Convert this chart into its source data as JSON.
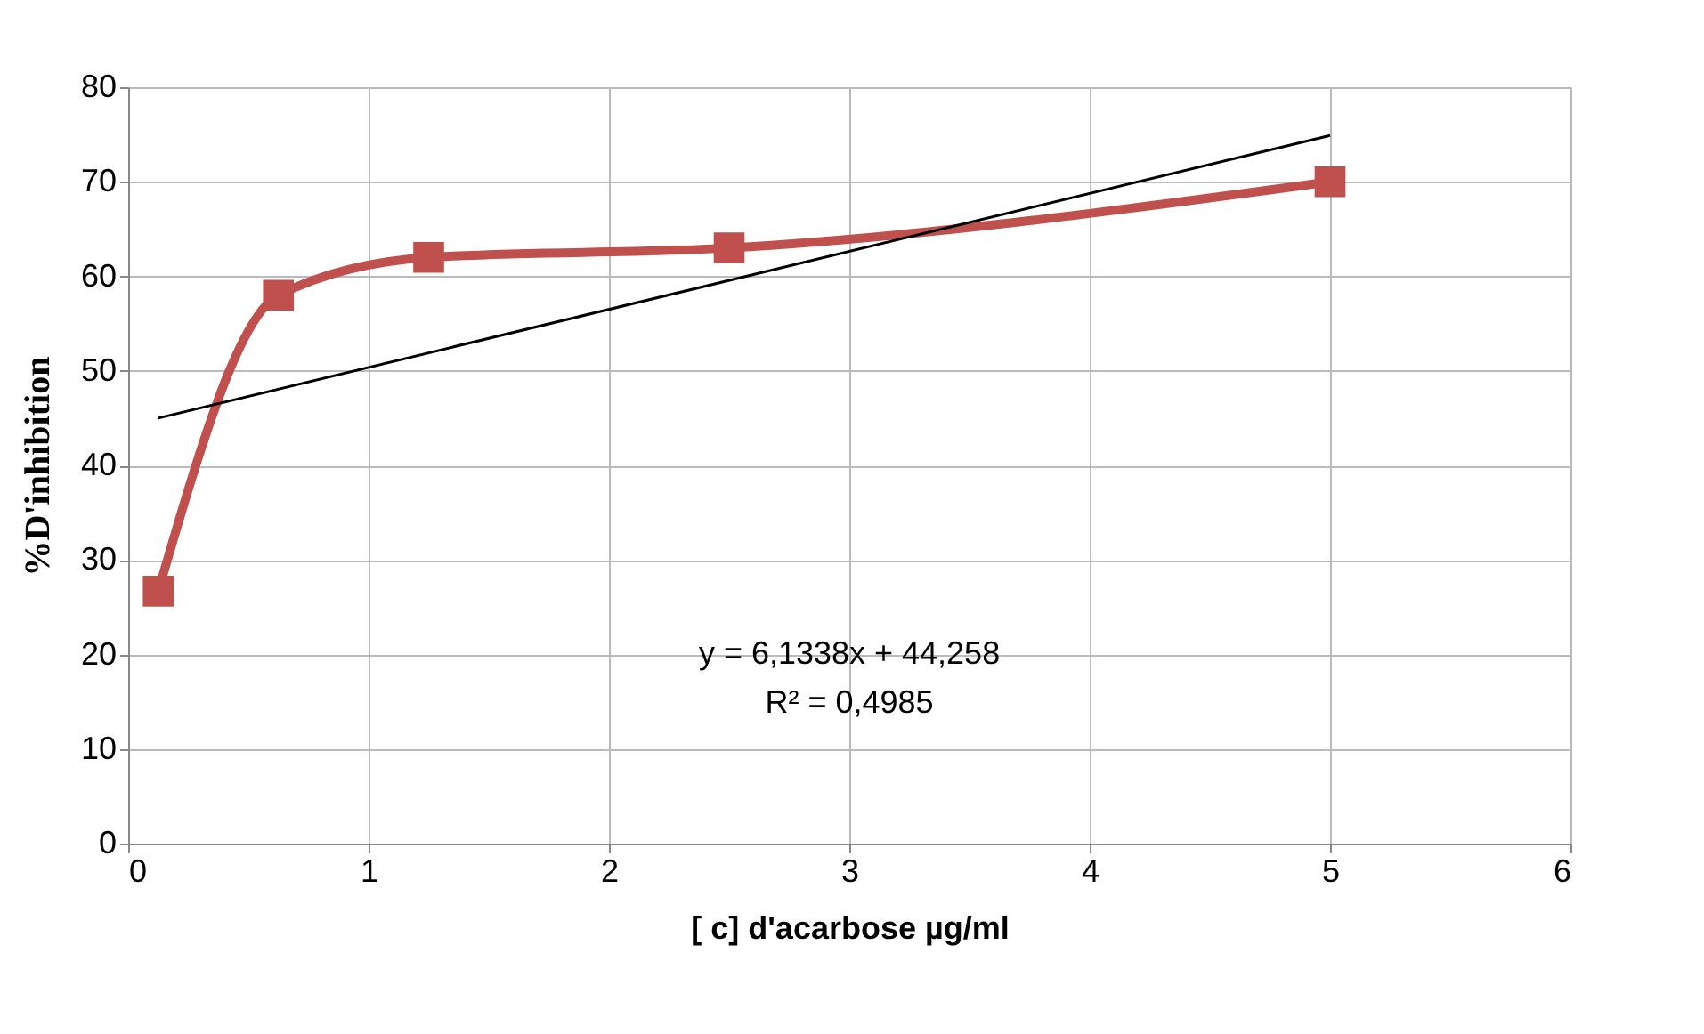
{
  "chart_data": {
    "type": "line",
    "xlabel": "[ c] d'acarbose µg/ml",
    "ylabel": "%D'inhibition",
    "xlim": [
      0,
      6
    ],
    "xticks": [
      0,
      1,
      2,
      3,
      4,
      5,
      6
    ],
    "ylim": [
      0,
      80
    ],
    "yticks": [
      0,
      10,
      20,
      30,
      40,
      50,
      60,
      70,
      80
    ],
    "grid": true,
    "series": [
      {
        "x": [
          0.125,
          0.625,
          1.25,
          2.5,
          5
        ],
        "values": [
          26.7,
          58,
          62,
          63,
          70
        ],
        "color": "#c0504d",
        "marker": "square",
        "line_style": "solid"
      },
      {
        "x": [
          0.125,
          5
        ],
        "values": [
          45.0,
          74.9
        ],
        "color": "#000000",
        "marker": "none",
        "line_style": "solid"
      }
    ],
    "annotations": [
      "y = 6,1338x + 44,258",
      "R² = 0,4985"
    ]
  }
}
